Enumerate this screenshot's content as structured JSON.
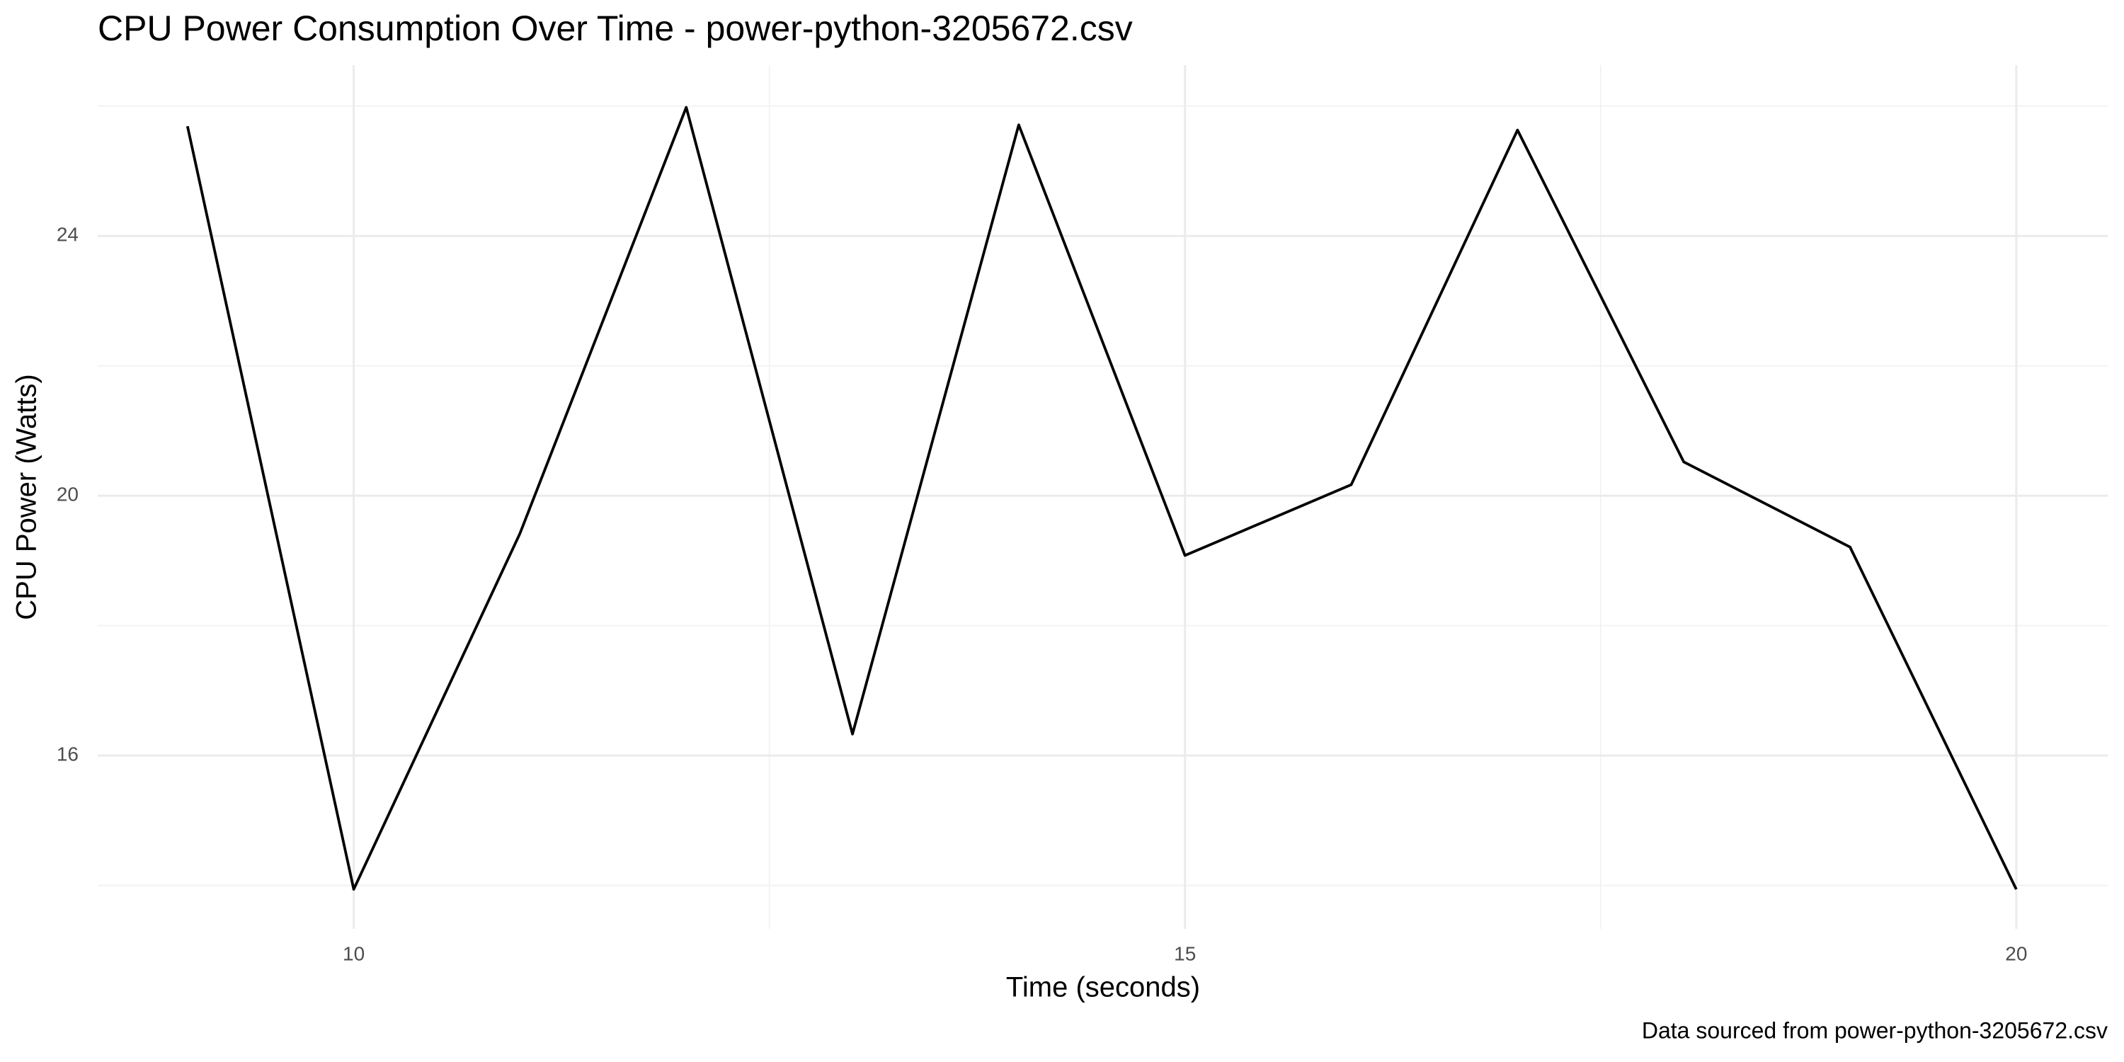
{
  "chart_data": {
    "type": "line",
    "title": "CPU Power Consumption Over Time - power-python-3205672.csv",
    "x_label": "Time (seconds)",
    "y_label": "CPU Power (Watts)",
    "caption": "Data sourced from power-python-3205672.csv",
    "x": [
      9,
      10,
      11,
      12,
      13,
      14,
      15,
      16,
      17,
      18,
      19,
      20
    ],
    "series": [
      {
        "color": "#000000",
        "values": [
          25.69,
          13.94,
          19.42,
          25.98,
          16.33,
          25.71,
          19.08,
          20.17,
          25.63,
          20.52,
          19.21,
          13.94
        ]
      }
    ],
    "xlim": [
      8.46,
      20.55
    ],
    "ylim": [
      13.33,
      26.63
    ],
    "xticks": [
      10,
      15,
      20
    ],
    "yticks": [
      16,
      20,
      24
    ],
    "minor_xticks": [
      12.5,
      17.5
    ],
    "minor_yticks": [
      14,
      18,
      22,
      26
    ],
    "grid": true
  }
}
